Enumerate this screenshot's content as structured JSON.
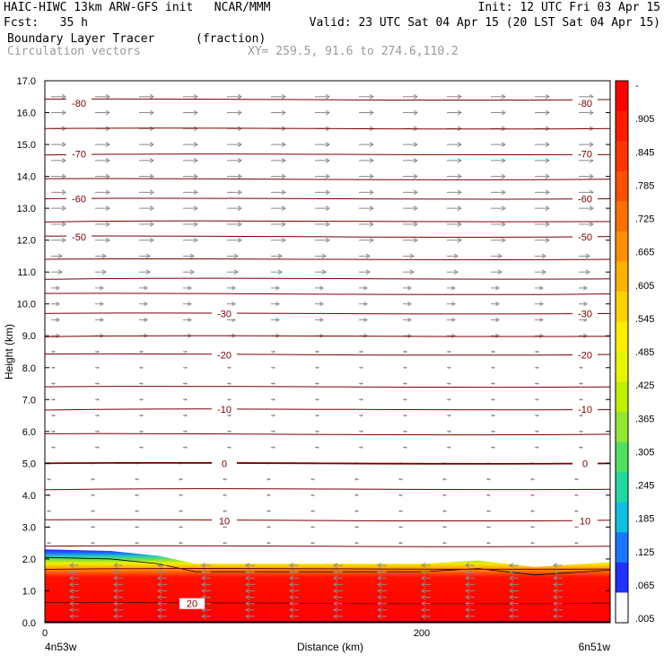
{
  "header": {
    "line1_left": "HAIC-HIWC 13km ARW-GFS init   NCAR/MMM",
    "line1_right": "Init: 12 UTC Fri 03 Apr 15",
    "line2_left": "Fcst:   35 h",
    "line2_right": "Valid: 23 UTC Sat 04 Apr 15 (20 LST Sat 04 Apr 15)",
    "field1_name": "Boundary Layer Tracer",
    "field1_units": "(fraction)",
    "field2_name": "Circulation vectors",
    "xsec_coords": "XY= 259.5, 91.6 to 274.6,110.2"
  },
  "chart_data": {
    "type": "heatmap",
    "ylabel": "Height (km)",
    "xlabel": "Distance (km)",
    "ylim": [
      0,
      17
    ],
    "xlim": [
      0,
      300
    ],
    "y_ticks": [
      "0.0",
      "1.0",
      "2.0",
      "3.0",
      "4.0",
      "5.0",
      "6.0",
      "7.0",
      "8.0",
      "9.0",
      "10.0",
      "11.0",
      "12.0",
      "13.0",
      "14.0",
      "15.0",
      "16.0",
      "17.0"
    ],
    "x_ticks": [
      {
        "value": 0,
        "label": "0"
      },
      {
        "value": 200,
        "label": "200"
      }
    ],
    "endpoint_labels": {
      "left": "4n53w",
      "right": "6n51w"
    },
    "colorbar": {
      "labels": [
        "-",
        ".905",
        ".845",
        ".785",
        ".725",
        ".665",
        ".605",
        ".545",
        ".485",
        ".425",
        ".365",
        ".305",
        ".245",
        ".185",
        ".125",
        ".065",
        ".005"
      ],
      "colors": [
        "#ff0000",
        "#ff1a00",
        "#ff3300",
        "#ff5000",
        "#ff7000",
        "#ff9000",
        "#ffb000",
        "#ffd000",
        "#ffee00",
        "#e6f500",
        "#bff000",
        "#90e830",
        "#50e060",
        "#20d8a0",
        "#10c0e0",
        "#1878ff",
        "#2030ff",
        "#ffffff"
      ]
    },
    "tracer_top_km": [
      {
        "x": 0,
        "top": 2.3
      },
      {
        "x": 35,
        "top": 2.25
      },
      {
        "x": 60,
        "top": 2.1
      },
      {
        "x": 80,
        "top": 1.85
      },
      {
        "x": 200,
        "top": 1.85
      },
      {
        "x": 230,
        "top": 1.95
      },
      {
        "x": 260,
        "top": 1.75
      },
      {
        "x": 300,
        "top": 1.9
      }
    ],
    "isotherm_labels": [
      {
        "value": "-80",
        "height_km": 16.3
      },
      {
        "value": "-70",
        "height_km": 14.7
      },
      {
        "value": "-60",
        "height_km": 13.3
      },
      {
        "value": "-50",
        "height_km": 12.1
      },
      {
        "value": "-30",
        "height_km": 9.7
      },
      {
        "value": "-20",
        "height_km": 8.4
      },
      {
        "value": "-10",
        "height_km": 6.7
      },
      {
        "value": "0",
        "height_km": 5.0
      },
      {
        "value": "10",
        "height_km": 3.2
      },
      {
        "value": "20",
        "height_km": 0.6
      }
    ]
  }
}
